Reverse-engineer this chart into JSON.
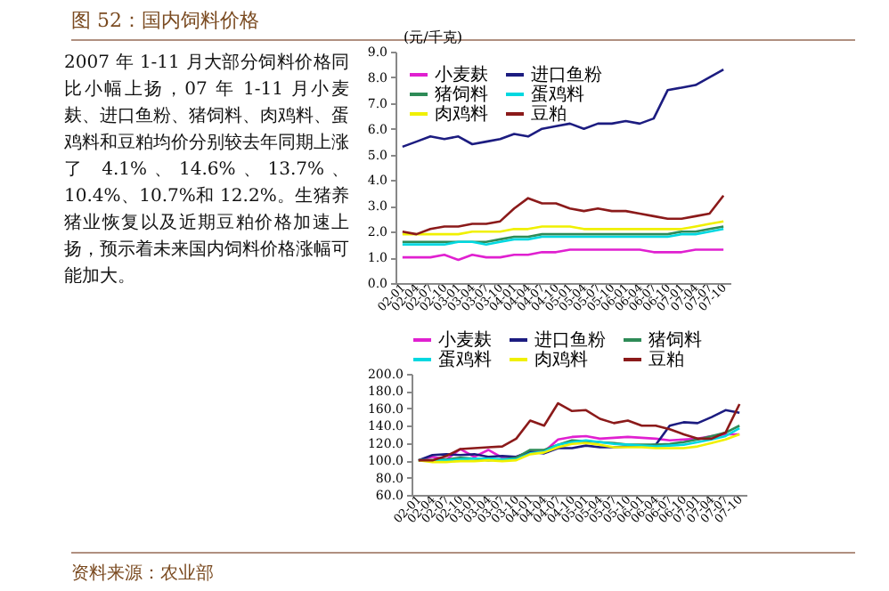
{
  "chart_data": [
    {
      "type": "other",
      "title": "图 52：国内饲料价格",
      "annotations": [
        "2007 年 1-11 月大部分饲料价格同比小幅上扬，07 年 1-11 月小麦麸、进口鱼粉、猪饲料、肉鸡料、蛋鸡料和豆粕均价分别较去年同期上涨了 4.1%、14.6%、13.7%、10.4%、10.7%和 12.2%。生猪养猪业恢复以及近期豆粕价格加速上扬，预示着未来国内饲料价格涨幅可能加大。",
        "资料来源：农业部"
      ]
    },
    {
      "type": "line",
      "ylabel": "(元/千克)",
      "legend": "top left",
      "categories": [
        "02-01",
        "02-04",
        "02-07",
        "02-10",
        "03-01",
        "03-04",
        "03-07",
        "03-10",
        "04-01",
        "04-04",
        "04-07",
        "04-10",
        "05-01",
        "05-04",
        "05-07",
        "05-10",
        "06-01",
        "06-04",
        "06-07",
        "06-10",
        "07-01",
        "07-04",
        "07-07",
        "07-10"
      ],
      "ylim": [
        0,
        9
      ],
      "yticks": [
        {
          "value": 0,
          "label": "0.0"
        },
        {
          "value": 1,
          "label": "1.0"
        },
        {
          "value": 2,
          "label": "2.0"
        },
        {
          "value": 3,
          "label": "3.0"
        },
        {
          "value": 4,
          "label": "4.0"
        },
        {
          "value": 5,
          "label": "5.0"
        },
        {
          "value": 6,
          "label": "6.0"
        },
        {
          "value": 7,
          "label": "7.0"
        },
        {
          "value": 8,
          "label": "8.0"
        },
        {
          "value": 9,
          "label": "9.0"
        }
      ],
      "series": [
        {
          "name": "小麦麸",
          "color": "#e020d0",
          "values": [
            1.0,
            1.0,
            1.0,
            1.1,
            0.9,
            1.1,
            1.0,
            1.0,
            1.1,
            1.1,
            1.2,
            1.2,
            1.3,
            1.3,
            1.3,
            1.3,
            1.3,
            1.3,
            1.2,
            1.2,
            1.2,
            1.3,
            1.3,
            1.3
          ]
        },
        {
          "name": "进口鱼粉",
          "color": "#1c1c80",
          "values": [
            5.3,
            5.5,
            5.7,
            5.6,
            5.7,
            5.4,
            5.5,
            5.6,
            5.8,
            5.7,
            6.0,
            6.1,
            6.2,
            6.0,
            6.2,
            6.2,
            6.3,
            6.2,
            6.4,
            7.5,
            7.6,
            7.7,
            8.0,
            8.3
          ]
        },
        {
          "name": "猪饲料",
          "color": "#2e8b57",
          "values": [
            1.6,
            1.6,
            1.6,
            1.6,
            1.6,
            1.6,
            1.6,
            1.7,
            1.8,
            1.8,
            1.9,
            1.9,
            1.9,
            1.9,
            1.9,
            1.9,
            1.9,
            1.9,
            1.9,
            1.9,
            2.0,
            2.0,
            2.1,
            2.2
          ]
        },
        {
          "name": "蛋鸡料",
          "color": "#00d8e0",
          "values": [
            1.5,
            1.5,
            1.5,
            1.5,
            1.6,
            1.6,
            1.5,
            1.6,
            1.7,
            1.7,
            1.8,
            1.8,
            1.8,
            1.8,
            1.8,
            1.8,
            1.8,
            1.8,
            1.8,
            1.8,
            1.9,
            1.9,
            2.0,
            2.1
          ]
        },
        {
          "name": "肉鸡料",
          "color": "#f0f000",
          "values": [
            1.9,
            1.9,
            1.9,
            1.9,
            1.9,
            2.0,
            2.0,
            2.0,
            2.1,
            2.1,
            2.2,
            2.2,
            2.2,
            2.1,
            2.1,
            2.1,
            2.1,
            2.1,
            2.1,
            2.1,
            2.1,
            2.2,
            2.3,
            2.4
          ]
        },
        {
          "name": "豆粕",
          "color": "#8b1a1a",
          "values": [
            2.0,
            1.9,
            2.1,
            2.2,
            2.2,
            2.3,
            2.3,
            2.4,
            2.9,
            3.3,
            3.1,
            3.1,
            2.9,
            2.8,
            2.9,
            2.8,
            2.8,
            2.7,
            2.6,
            2.5,
            2.5,
            2.6,
            2.7,
            3.4
          ]
        }
      ]
    },
    {
      "type": "line",
      "legend": "top",
      "categories": [
        "02-01",
        "02-04",
        "02-07",
        "02-10",
        "03-01",
        "03-04",
        "03-07",
        "03-10",
        "04-01",
        "04-04",
        "04-07",
        "04-10",
        "05-01",
        "05-04",
        "05-07",
        "05-10",
        "06-01",
        "06-04",
        "06-07",
        "06-10",
        "07-01",
        "07-04",
        "07-07",
        "07-10"
      ],
      "ylim": [
        60,
        200
      ],
      "yticks": [
        {
          "value": 60,
          "label": "60.0"
        },
        {
          "value": 80,
          "label": "80.0"
        },
        {
          "value": 100,
          "label": "100.0"
        },
        {
          "value": 120,
          "label": "120.0"
        },
        {
          "value": 140,
          "label": "140.0"
        },
        {
          "value": 160,
          "label": "160.0"
        },
        {
          "value": 180,
          "label": "180.0"
        },
        {
          "value": 200,
          "label": "200.0"
        }
      ],
      "series": [
        {
          "name": "小麦麸",
          "color": "#e020d0",
          "values": [
            100,
            104,
            101,
            113,
            104,
            112,
            103,
            104,
            110,
            110,
            124,
            127,
            128,
            125,
            126,
            127,
            126,
            125,
            123,
            124,
            125,
            128,
            130,
            130
          ]
        },
        {
          "name": "进口鱼粉",
          "color": "#1c1c80",
          "values": [
            100,
            106,
            107,
            106,
            107,
            104,
            105,
            104,
            110,
            108,
            114,
            114,
            117,
            115,
            115,
            116,
            116,
            118,
            140,
            144,
            143,
            150,
            158,
            155
          ]
        },
        {
          "name": "猪饲料",
          "color": "#2e8b57",
          "values": [
            100,
            100,
            101,
            103,
            102,
            100,
            101,
            103,
            112,
            112,
            118,
            123,
            122,
            121,
            120,
            118,
            118,
            118,
            119,
            121,
            124,
            128,
            132,
            140
          ]
        },
        {
          "name": "蛋鸡料",
          "color": "#00d8e0",
          "values": [
            100,
            100,
            100,
            101,
            102,
            102,
            101,
            101,
            108,
            110,
            118,
            121,
            123,
            121,
            119,
            118,
            117,
            116,
            117,
            118,
            121,
            124,
            128,
            137
          ]
        },
        {
          "name": "肉鸡料",
          "color": "#f0f000",
          "values": [
            100,
            98,
            98,
            99,
            99,
            100,
            99,
            100,
            107,
            109,
            115,
            119,
            120,
            118,
            115,
            115,
            115,
            114,
            114,
            114,
            116,
            120,
            124,
            130
          ]
        },
        {
          "name": "豆粕",
          "color": "#8b1a1a",
          "values": [
            100,
            100,
            105,
            113,
            114,
            115,
            116,
            125,
            146,
            140,
            166,
            157,
            158,
            148,
            143,
            146,
            140,
            140,
            136,
            130,
            125,
            125,
            132,
            165
          ]
        }
      ]
    }
  ]
}
